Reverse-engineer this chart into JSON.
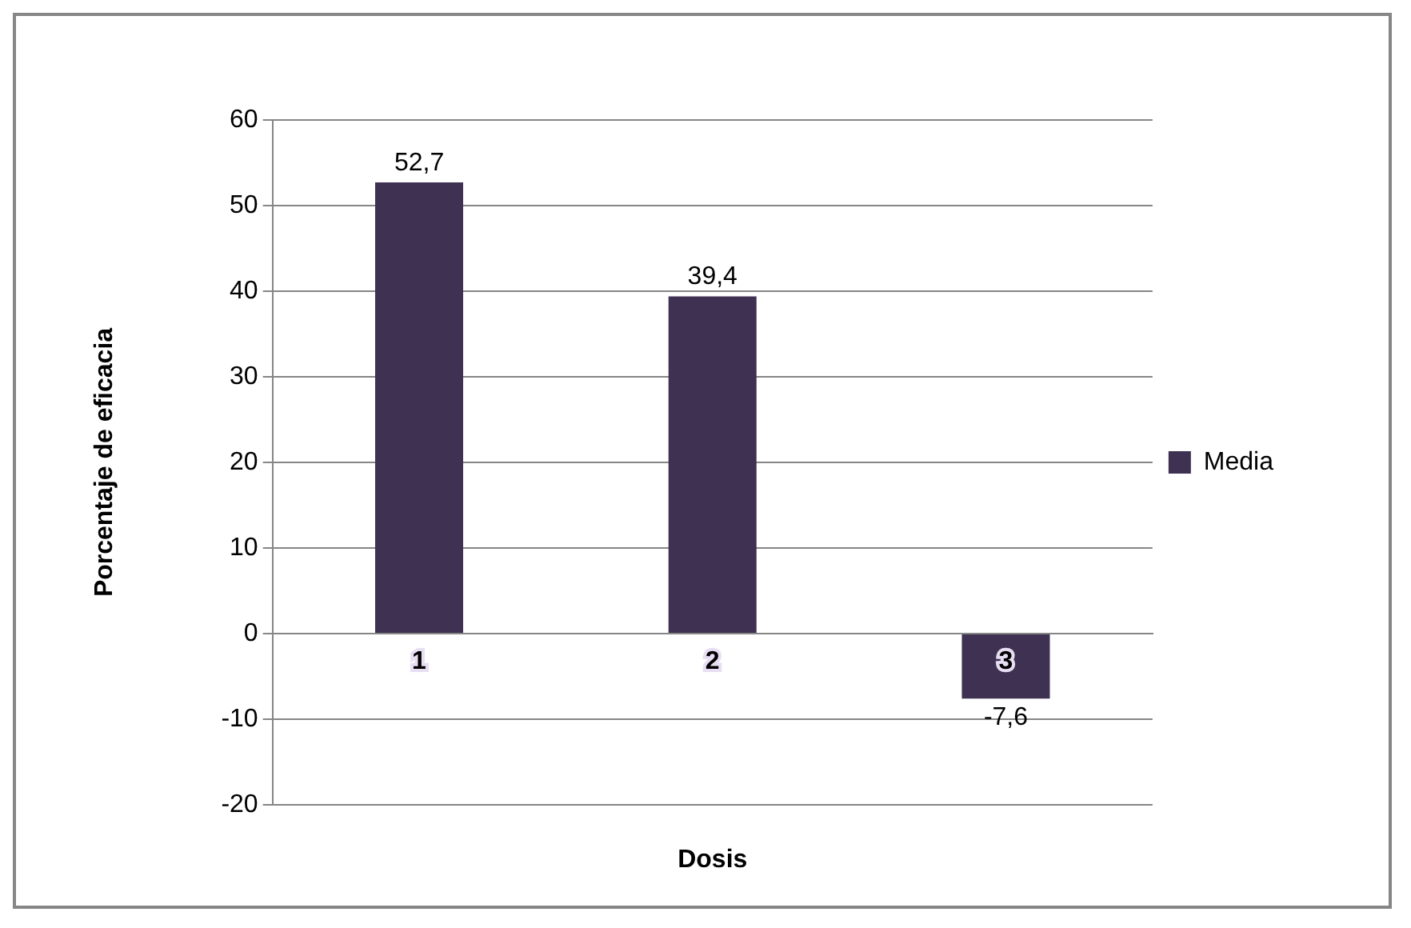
{
  "chart_data": {
    "type": "bar",
    "xlabel": "Dosis",
    "ylabel": "Porcentaje de eficacia",
    "categories": [
      "1",
      "2",
      "3"
    ],
    "series": [
      {
        "name": "Media",
        "color": "#3f3151",
        "values": [
          52.7,
          39.4,
          -7.6
        ],
        "value_labels": [
          "52,7",
          "39,4",
          "-7,6"
        ]
      }
    ],
    "ylim": [
      -20,
      60
    ],
    "yticks": [
      -20,
      -10,
      0,
      10,
      20,
      30,
      40,
      50,
      60
    ],
    "grid": "y",
    "legend": "right"
  }
}
